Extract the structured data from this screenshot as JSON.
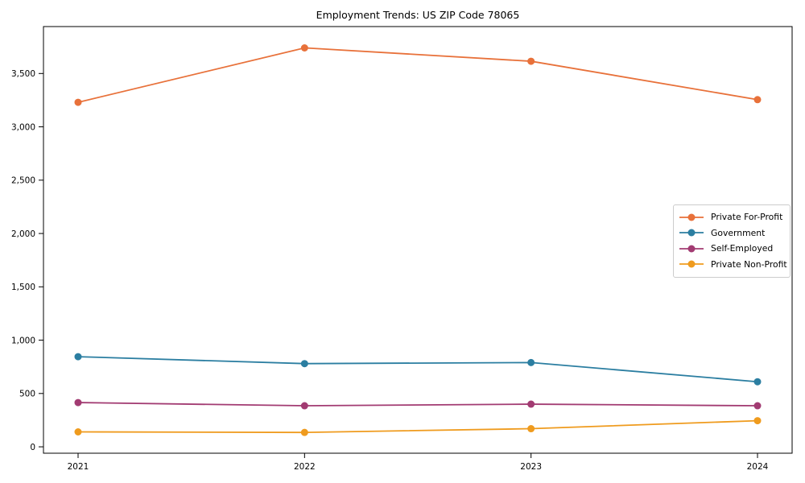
{
  "page": {
    "background": "#ffffff"
  },
  "chart_data": {
    "type": "line",
    "title": "Employment Trends: US ZIP Code 78065",
    "xlabel": "",
    "ylabel": "",
    "categories": [
      "2021",
      "2022",
      "2023",
      "2024"
    ],
    "series": [
      {
        "name": "Private For-Profit",
        "color": "#e8713a",
        "values": [
          3230,
          3740,
          3615,
          3255
        ]
      },
      {
        "name": "Government",
        "color": "#2b7ea1",
        "values": [
          845,
          780,
          790,
          610
        ]
      },
      {
        "name": "Self-Employed",
        "color": "#a23b72",
        "values": [
          415,
          385,
          400,
          385
        ]
      },
      {
        "name": "Private Non-Profit",
        "color": "#ef9b1e",
        "values": [
          140,
          135,
          170,
          245
        ]
      }
    ],
    "yticks": [
      0,
      500,
      1000,
      1500,
      2000,
      2500,
      3000,
      3500
    ],
    "ytick_labels": [
      "0",
      "500",
      "1,000",
      "1,500",
      "2,000",
      "2,500",
      "3,000",
      "3,500"
    ],
    "ylim": [
      -60,
      3940
    ],
    "grid": false,
    "frame": true,
    "legend_position": "center right",
    "axis_color": "#000000",
    "legend_border_color": "#cccccc",
    "marker": "circle"
  }
}
